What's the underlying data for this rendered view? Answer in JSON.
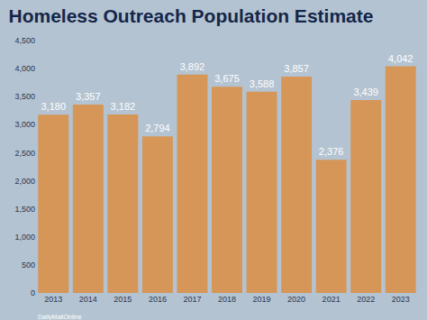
{
  "chart_data": {
    "type": "bar",
    "title": "Homeless Outreach Population Estimate",
    "categories": [
      "2013",
      "2014",
      "2015",
      "2016",
      "2017",
      "2018",
      "2019",
      "2020",
      "2021",
      "2022",
      "2023"
    ],
    "values": [
      3180,
      3357,
      3182,
      2794,
      3892,
      3675,
      3588,
      3857,
      2376,
      3439,
      4042
    ],
    "value_labels": [
      "3,180",
      "3,357",
      "3,182",
      "2,794",
      "3,892",
      "3,675",
      "3,588",
      "3,857",
      "2,376",
      "3,439",
      "4,042"
    ],
    "color": "#d9914a",
    "ylim": [
      0,
      4500
    ],
    "yticks": [
      0,
      500,
      {
        "value": 1000,
        "label": "1,000"
      },
      {
        "value": 1500,
        "label": "1,500"
      },
      {
        "value": 2000,
        "label": "2,000"
      },
      {
        "value": 2500,
        "label": "2,500"
      },
      {
        "value": 3000,
        "label": "3,000"
      },
      {
        "value": 3500,
        "label": "3,500"
      },
      {
        "value": 4000,
        "label": "4,000"
      },
      {
        "value": 4500,
        "label": "4,500"
      }
    ],
    "grid": false,
    "data_labels": true,
    "annotations": [
      "DailyMailOnline"
    ]
  }
}
